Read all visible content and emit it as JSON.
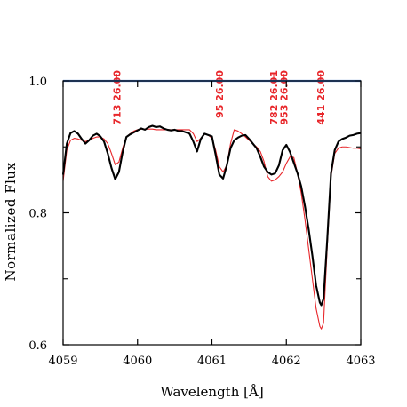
{
  "chart_data": {
    "type": "line",
    "title": "",
    "xlabel": "Wavelength [Å]",
    "ylabel": "Normalized Flux",
    "xlim": [
      4059.0,
      4063.0
    ],
    "ylim": [
      0.6,
      1.0
    ],
    "xticks": [
      4059,
      4060,
      4061,
      4062,
      4063
    ],
    "xtick_labels": [
      "4059",
      "4060",
      "4061",
      "4062",
      "4063"
    ],
    "yticks": [
      0.6,
      0.8,
      1.0
    ],
    "ytick_labels": [
      "0.6",
      "0.8",
      "1.0"
    ],
    "grid": false,
    "legend": "none",
    "colors": {
      "observed": "#000000",
      "model": "#e8262a",
      "reference": "#4a7fd0",
      "annotation": "#e8262a"
    },
    "reference_line": {
      "y": 1.0
    },
    "line_annotations": [
      {
        "x": 4059.72,
        "label": "713 26.00"
      },
      {
        "x": 4061.1,
        "label": "95 26.00"
      },
      {
        "x": 4061.83,
        "label": "782 26.01"
      },
      {
        "x": 4061.97,
        "label": "953 26.00"
      },
      {
        "x": 4062.46,
        "label": "441 26.00"
      }
    ],
    "series": [
      {
        "key": "observed",
        "x": [
          4059.0,
          4059.05,
          4059.1,
          4059.15,
          4059.2,
          4059.25,
          4059.3,
          4059.35,
          4059.4,
          4059.45,
          4059.5,
          4059.55,
          4059.6,
          4059.65,
          4059.7,
          4059.75,
          4059.8,
          4059.85,
          4059.9,
          4059.95,
          4060.0,
          4060.05,
          4060.1,
          4060.15,
          4060.2,
          4060.25,
          4060.3,
          4060.35,
          4060.4,
          4060.45,
          4060.5,
          4060.55,
          4060.6,
          4060.65,
          4060.7,
          4060.75,
          4060.8,
          4060.85,
          4060.9,
          4060.95,
          4061.0,
          4061.05,
          4061.1,
          4061.15,
          4061.2,
          4061.25,
          4061.3,
          4061.35,
          4061.4,
          4061.45,
          4061.5,
          4061.55,
          4061.6,
          4061.65,
          4061.7,
          4061.75,
          4061.8,
          4061.85,
          4061.9,
          4061.95,
          4062.0,
          4062.05,
          4062.1,
          4062.15,
          4062.2,
          4062.25,
          4062.3,
          4062.35,
          4062.4,
          4062.45,
          4062.47,
          4062.5,
          4062.55,
          4062.6,
          4062.65,
          4062.7,
          4062.75,
          4062.8,
          4062.85,
          4062.9,
          4062.95,
          4063.0
        ],
        "y": [
          0.858,
          0.905,
          0.921,
          0.924,
          0.92,
          0.912,
          0.905,
          0.91,
          0.917,
          0.92,
          0.916,
          0.908,
          0.89,
          0.868,
          0.851,
          0.862,
          0.892,
          0.915,
          0.919,
          0.922,
          0.925,
          0.928,
          0.926,
          0.93,
          0.932,
          0.93,
          0.931,
          0.928,
          0.926,
          0.925,
          0.926,
          0.924,
          0.924,
          0.922,
          0.92,
          0.908,
          0.893,
          0.912,
          0.92,
          0.918,
          0.916,
          0.888,
          0.858,
          0.852,
          0.872,
          0.898,
          0.91,
          0.914,
          0.917,
          0.918,
          0.912,
          0.905,
          0.898,
          0.885,
          0.87,
          0.862,
          0.858,
          0.86,
          0.872,
          0.895,
          0.903,
          0.892,
          0.876,
          0.86,
          0.84,
          0.81,
          0.775,
          0.735,
          0.69,
          0.664,
          0.66,
          0.67,
          0.76,
          0.86,
          0.895,
          0.908,
          0.912,
          0.914,
          0.917,
          0.918,
          0.92,
          0.921
        ]
      },
      {
        "key": "model",
        "x": [
          4059.0,
          4059.05,
          4059.1,
          4059.15,
          4059.2,
          4059.25,
          4059.3,
          4059.35,
          4059.4,
          4059.45,
          4059.5,
          4059.55,
          4059.6,
          4059.65,
          4059.7,
          4059.75,
          4059.8,
          4059.85,
          4059.9,
          4059.95,
          4060.0,
          4060.05,
          4060.1,
          4060.15,
          4060.2,
          4060.25,
          4060.3,
          4060.35,
          4060.4,
          4060.45,
          4060.5,
          4060.55,
          4060.6,
          4060.65,
          4060.7,
          4060.75,
          4060.8,
          4060.85,
          4060.9,
          4060.95,
          4061.0,
          4061.05,
          4061.1,
          4061.15,
          4061.2,
          4061.25,
          4061.3,
          4061.35,
          4061.4,
          4061.45,
          4061.5,
          4061.55,
          4061.6,
          4061.65,
          4061.7,
          4061.75,
          4061.8,
          4061.85,
          4061.9,
          4061.95,
          4062.0,
          4062.05,
          4062.1,
          4062.15,
          4062.2,
          4062.25,
          4062.3,
          4062.35,
          4062.4,
          4062.45,
          4062.47,
          4062.5,
          4062.55,
          4062.6,
          4062.65,
          4062.7,
          4062.75,
          4062.8,
          4062.85,
          4062.9,
          4062.95,
          4063.0
        ],
        "y": [
          0.848,
          0.895,
          0.91,
          0.913,
          0.912,
          0.91,
          0.908,
          0.91,
          0.913,
          0.915,
          0.915,
          0.912,
          0.905,
          0.89,
          0.873,
          0.877,
          0.898,
          0.915,
          0.92,
          0.924,
          0.926,
          0.927,
          0.927,
          0.927,
          0.927,
          0.926,
          0.926,
          0.926,
          0.926,
          0.926,
          0.926,
          0.926,
          0.926,
          0.926,
          0.926,
          0.92,
          0.908,
          0.913,
          0.92,
          0.918,
          0.913,
          0.895,
          0.87,
          0.862,
          0.872,
          0.905,
          0.926,
          0.924,
          0.92,
          0.915,
          0.91,
          0.905,
          0.9,
          0.893,
          0.878,
          0.855,
          0.848,
          0.85,
          0.855,
          0.862,
          0.875,
          0.885,
          0.884,
          0.86,
          0.83,
          0.79,
          0.745,
          0.7,
          0.655,
          0.628,
          0.624,
          0.633,
          0.75,
          0.855,
          0.89,
          0.898,
          0.9,
          0.9,
          0.899,
          0.898,
          0.898,
          0.897
        ]
      }
    ]
  }
}
